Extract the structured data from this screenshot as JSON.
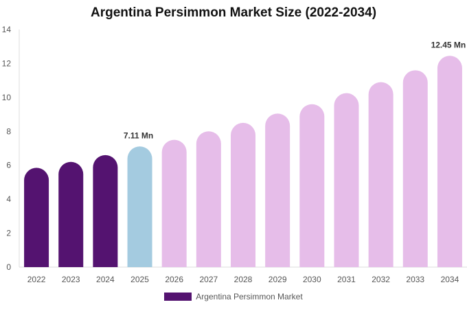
{
  "chart_data": {
    "type": "bar",
    "title": "Argentina Persimmon Market Size (2022-2034)",
    "categories": [
      "2022",
      "2023",
      "2024",
      "2025",
      "2026",
      "2027",
      "2028",
      "2029",
      "2030",
      "2031",
      "2032",
      "2033",
      "2034"
    ],
    "series": [
      {
        "name": "Argentina Persimmon Market",
        "values": [
          5.85,
          6.2,
          6.6,
          7.11,
          7.5,
          8.0,
          8.5,
          9.05,
          9.6,
          10.25,
          10.9,
          11.6,
          12.45
        ]
      }
    ],
    "bar_colors": [
      "#541370",
      "#541370",
      "#541370",
      "#a4cbe0",
      "#e6bde9",
      "#e6bde9",
      "#e6bde9",
      "#e6bde9",
      "#e6bde9",
      "#e6bde9",
      "#e6bde9",
      "#e6bde9",
      "#e6bde9"
    ],
    "data_labels": [
      {
        "index": 3,
        "text": "7.11 Mn"
      },
      {
        "index": 12,
        "text": "12.45 Mn"
      }
    ],
    "ylim": [
      0,
      14
    ],
    "yticks": [
      0,
      2,
      4,
      6,
      8,
      10,
      12,
      14
    ],
    "xlabel": "",
    "ylabel": "",
    "grid": false,
    "legend": {
      "position": "bottom",
      "color": "#541370"
    }
  }
}
